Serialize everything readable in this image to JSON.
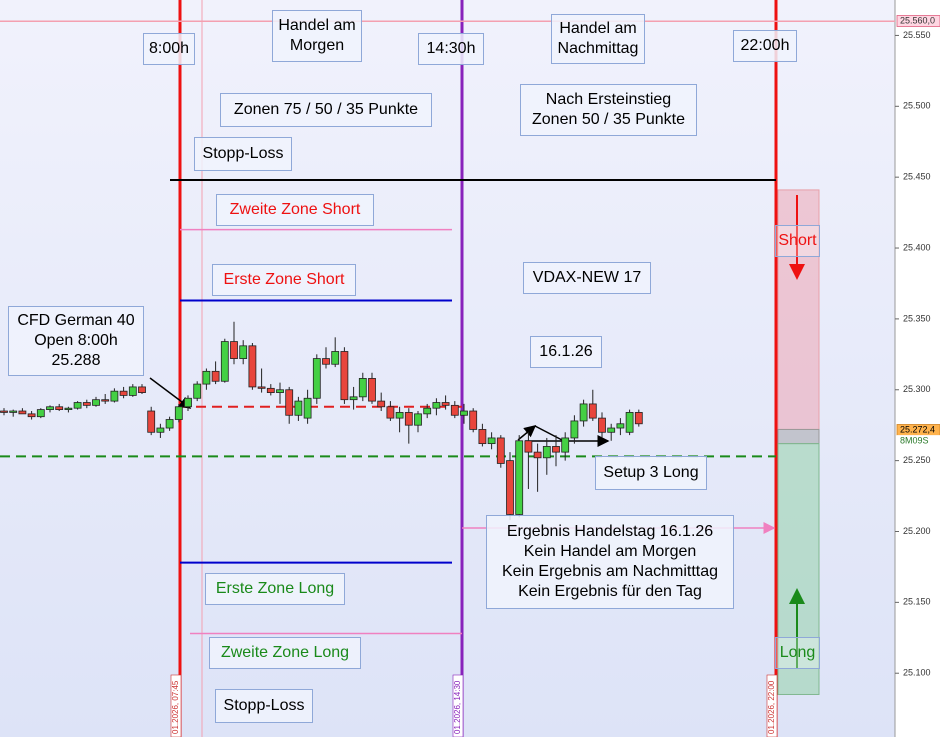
{
  "chart_data": {
    "type": "candlestick",
    "ylim": [
      25055,
      25575
    ],
    "yticks": [
      {
        "value": 25550,
        "label": "25.550"
      },
      {
        "value": 25500,
        "label": "25.500"
      },
      {
        "value": 25450,
        "label": "25.450"
      },
      {
        "value": 25400,
        "label": "25.400"
      },
      {
        "value": 25350,
        "label": "25.350"
      },
      {
        "value": 25300,
        "label": "25.300"
      },
      {
        "value": 25250,
        "label": "25.250"
      },
      {
        "value": 25200,
        "label": "25.200"
      },
      {
        "value": 25150,
        "label": "25.150"
      },
      {
        "value": 25100,
        "label": "25.100"
      }
    ],
    "up_color": "#44d044",
    "down_color": "#e8453c",
    "open": [
      25285,
      25284,
      25285,
      25283,
      25281,
      25286,
      25288,
      25286,
      25287,
      25291,
      25289,
      25293,
      25292,
      25299,
      25296,
      25302,
      25285,
      25270,
      25273,
      25279,
      25288,
      25294,
      25304,
      25313,
      25306,
      25334,
      25322,
      25331,
      25302,
      25301,
      25298,
      25300,
      25282,
      25280,
      25294,
      25322,
      25318,
      25327,
      25293,
      25295,
      25308,
      25292,
      25288,
      25280,
      25284,
      25275,
      25283,
      25287,
      25291,
      25289,
      25282,
      25285,
      25272,
      25262,
      25266,
      25250,
      25212,
      25264,
      25256,
      25252,
      25260,
      25256,
      25266,
      25278,
      25290,
      25280,
      25270,
      25273,
      25270,
      25284
    ],
    "high": [
      25287,
      25286,
      25287,
      25285,
      25287,
      25289,
      25290,
      25288,
      25292,
      25293,
      25295,
      25297,
      25301,
      25302,
      25304,
      25304,
      25288,
      25276,
      25281,
      25290,
      25296,
      25306,
      25315,
      25320,
      25336,
      25348,
      25335,
      25333,
      25315,
      25304,
      25305,
      25302,
      25295,
      25300,
      25325,
      25330,
      25337,
      25330,
      25302,
      25312,
      25312,
      25298,
      25292,
      25288,
      25287,
      25285,
      25290,
      25294,
      25296,
      25292,
      25290,
      25287,
      25276,
      25270,
      25268,
      25256,
      25268,
      25270,
      25262,
      25266,
      25268,
      25270,
      25282,
      25293,
      25300,
      25284,
      25276,
      25280,
      25286,
      25286
    ],
    "low": [
      25282,
      25281,
      25283,
      25279,
      25280,
      25284,
      25285,
      25284,
      25286,
      25287,
      25288,
      25290,
      25291,
      25294,
      25295,
      25297,
      25268,
      25266,
      25271,
      25277,
      25285,
      25292,
      25300,
      25304,
      25305,
      25318,
      25318,
      25300,
      25298,
      25296,
      25290,
      25276,
      25278,
      25276,
      25290,
      25315,
      25316,
      25290,
      25286,
      25292,
      25290,
      25285,
      25278,
      25270,
      25262,
      25270,
      25280,
      25282,
      25286,
      25280,
      25276,
      25270,
      25260,
      25258,
      25245,
      25208,
      25210,
      25230,
      25228,
      25240,
      25246,
      25250,
      25262,
      25274,
      25278,
      25266,
      25264,
      25268,
      25268,
      25274
    ],
    "close": [
      25284,
      25285,
      25283,
      25281,
      25286,
      25288,
      25286,
      25287,
      25291,
      25289,
      25293,
      25292,
      25299,
      25296,
      25302,
      25298,
      25270,
      25273,
      25279,
      25288,
      25294,
      25304,
      25313,
      25306,
      25334,
      25322,
      25331,
      25302,
      25301,
      25298,
      25300,
      25282,
      25292,
      25294,
      25322,
      25318,
      25327,
      25293,
      25295,
      25308,
      25292,
      25288,
      25280,
      25284,
      25275,
      25283,
      25287,
      25291,
      25289,
      25282,
      25285,
      25272,
      25262,
      25266,
      25248,
      25212,
      25264,
      25256,
      25252,
      25260,
      25256,
      25266,
      25278,
      25290,
      25280,
      25270,
      25273,
      25276,
      25284,
      25276
    ],
    "levels": [
      {
        "value": 25560,
        "color": "#f4a0b0",
        "dash": false
      },
      {
        "value": 25448,
        "color": "#000000",
        "dash": false
      },
      {
        "value": 25413,
        "color": "#f080c0",
        "dash": false
      },
      {
        "value": 25363,
        "color": "#0000cc",
        "dash": false
      },
      {
        "value": 25288,
        "color": "#e02020",
        "dash": true
      },
      {
        "value": 25253,
        "color": "#1a8a1a",
        "dash": true
      },
      {
        "value": 25178,
        "color": "#0000cc",
        "dash": false
      },
      {
        "value": 25128,
        "color": "#f080c0",
        "dash": false
      }
    ],
    "zones": [
      {
        "low": 25272,
        "high": 25441,
        "fill": "rgba(240,150,165,0.45)",
        "stroke": "#e8a0a8"
      },
      {
        "low": 25262,
        "high": 25272,
        "fill": "rgba(150,150,150,0.45)",
        "stroke": "#999999"
      },
      {
        "low": 25085,
        "high": 25262,
        "fill": "rgba(150,210,170,0.55)",
        "stroke": "#80b890"
      }
    ],
    "zone_labels": [
      "Short",
      "Long"
    ],
    "vline_labels": [
      "01.2026, 07:45",
      "01.2026, 14:30",
      "01.2026, 22:00"
    ],
    "price_tags": [
      "25.560,0",
      "25.272,4",
      "8M09S"
    ],
    "annotations": [
      [
        "8:00h"
      ],
      [
        "Handel am",
        "Morgen"
      ],
      [
        "14:30h"
      ],
      [
        "Handel am",
        "Nachmittag"
      ],
      [
        "22:00h"
      ],
      [
        "Zonen 75 / 50 / 35 Punkte"
      ],
      [
        "Nach Ersteinstieg",
        "Zonen 50 / 35 Punkte"
      ],
      [
        "Stopp-Loss"
      ],
      [
        "Zweite Zone Short"
      ],
      [
        "Erste Zone Short"
      ],
      [
        "VDAX-NEW 17"
      ],
      [
        "CFD German 40",
        "Open 8:00h",
        "25.288"
      ],
      [
        "16.1.26"
      ],
      [
        "Setup 3 Long"
      ],
      [
        "Ergebnis Handelstag 16.1.26",
        "Kein Handel am Morgen",
        "Kein Ergebnis am Nachmitttag",
        "Kein Ergebnis für den Tag"
      ],
      [
        "Erste Zone Long"
      ],
      [
        "Zweite Zone Long"
      ],
      [
        "Stopp-Loss"
      ]
    ]
  }
}
